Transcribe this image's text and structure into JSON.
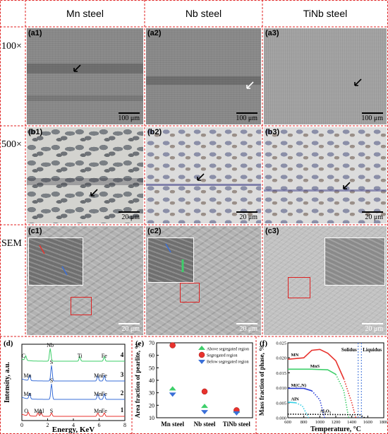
{
  "columns": [
    "Mn steel",
    "Nb steel",
    "TiNb steel"
  ],
  "rows": [
    "100×",
    "500×",
    "SEM"
  ],
  "panels": {
    "a1": "(a1)",
    "a2": "(a2)",
    "a3": "(a3)",
    "b1": "(b1)",
    "b2": "(b2)",
    "b3": "(b3)",
    "c1": "(c1)",
    "c2": "(c2)",
    "c3": "(c3)",
    "d": "(d)",
    "e": "(e)",
    "f": "(f)"
  },
  "scale_bars": {
    "a": "100 μm",
    "b": "20 μm",
    "c": "20 μm"
  },
  "chart_data": [
    {
      "type": "line",
      "panel": "(d)",
      "xlabel": "Energy, KeV",
      "ylabel": "Intensity, a.u.",
      "xlim": [
        0,
        8
      ],
      "x_ticks": [
        "0",
        "2",
        "4",
        "6",
        "8"
      ],
      "series": [
        {
          "name": "1",
          "color": "#e8322d",
          "peaks": [
            {
              "x": 0.5,
              "label": "O"
            },
            {
              "x": 1.25,
              "label": "Mg"
            },
            {
              "x": 1.5,
              "label": "Al"
            },
            {
              "x": 2.3,
              "label": "S"
            },
            {
              "x": 5.9,
              "label": "Mn"
            },
            {
              "x": 6.4,
              "label": "Fe"
            }
          ]
        },
        {
          "name": "2",
          "color": "#3a6fd8",
          "peaks": [
            {
              "x": 0.6,
              "label": "Mn"
            },
            {
              "x": 2.3,
              "label": "S"
            },
            {
              "x": 5.9,
              "label": "Mn"
            },
            {
              "x": 6.4,
              "label": "Fe"
            }
          ]
        },
        {
          "name": "3",
          "color": "#3a6fd8",
          "peaks": [
            {
              "x": 0.6,
              "label": "Mn"
            },
            {
              "x": 2.3,
              "label": "S"
            },
            {
              "x": 5.9,
              "label": "Mn"
            },
            {
              "x": 6.4,
              "label": "Fe"
            }
          ]
        },
        {
          "name": "4",
          "color": "#3ecf6a",
          "peaks": [
            {
              "x": 0.3,
              "label": "C"
            },
            {
              "x": 2.2,
              "label": "Nb"
            },
            {
              "x": 4.5,
              "label": "Ti"
            },
            {
              "x": 6.4,
              "label": "Fe"
            }
          ]
        }
      ]
    },
    {
      "type": "scatter",
      "panel": "(e)",
      "ylabel": "Area fraction of pearlite, %",
      "ylim": [
        10,
        70
      ],
      "y_ticks": [
        "10",
        "20",
        "30",
        "40",
        "50",
        "60",
        "70"
      ],
      "categories": [
        "Mn steel",
        "Nb steel",
        "TiNb steel"
      ],
      "legend_position": "top-right",
      "series": [
        {
          "name": "Above segregated region",
          "color": "#3ecf6a",
          "values": [
            33,
            19,
            15
          ]
        },
        {
          "name": "Segregated region",
          "color": "#e8322d",
          "values": [
            68,
            31,
            16
          ]
        },
        {
          "name": "Below segregated region",
          "color": "#3a6fd8",
          "values": [
            29,
            15,
            14
          ]
        }
      ]
    },
    {
      "type": "line",
      "panel": "(f)",
      "xlabel": "Temperature, °C",
      "ylabel": "Mass fraction of phase, %",
      "xlim": [
        600,
        1800
      ],
      "ylim": [
        0,
        0.025
      ],
      "x_ticks": [
        "600",
        "800",
        "1000",
        "1200",
        "1400",
        "1600",
        "1800"
      ],
      "y_ticks": [
        "0.000",
        "0.005",
        "0.010",
        "0.015",
        "0.020",
        "0.025"
      ],
      "annotations": [
        "Solidus",
        "Liquidus"
      ],
      "series": [
        {
          "name": "MN",
          "color": "#e8322d",
          "points": [
            [
              600,
              0.0195
            ],
            [
              800,
              0.02
            ],
            [
              900,
              0.0225
            ],
            [
              1000,
              0.0228
            ],
            [
              1100,
              0.0215
            ],
            [
              1200,
              0.019
            ],
            [
              1300,
              0.013
            ],
            [
              1400,
              0.005
            ],
            [
              1450,
              0.0
            ]
          ]
        },
        {
          "name": "MnS",
          "color": "#3ecf6a",
          "points": [
            [
              600,
              0.0162
            ],
            [
              900,
              0.0162
            ],
            [
              1100,
              0.016
            ],
            [
              1200,
              0.0145
            ],
            [
              1300,
              0.009
            ],
            [
              1360,
              0.0
            ]
          ]
        },
        {
          "name": "M(C,N)",
          "color": "#2b3fd8",
          "points": [
            [
              600,
              0.0098
            ],
            [
              800,
              0.0098
            ],
            [
              900,
              0.009
            ],
            [
              1000,
              0.006
            ],
            [
              1060,
              0.0
            ]
          ]
        },
        {
          "name": "AlN",
          "color": "#34d0e6",
          "points": [
            [
              600,
              0.0052
            ],
            [
              700,
              0.005
            ],
            [
              780,
              0.004
            ],
            [
              860,
              0.0
            ]
          ]
        },
        {
          "name": "Al₂O₃",
          "color": "#000000",
          "points": [
            [
              600,
              0.0012
            ],
            [
              1500,
              0.001
            ],
            [
              1560,
              0.0
            ]
          ]
        }
      ]
    }
  ]
}
